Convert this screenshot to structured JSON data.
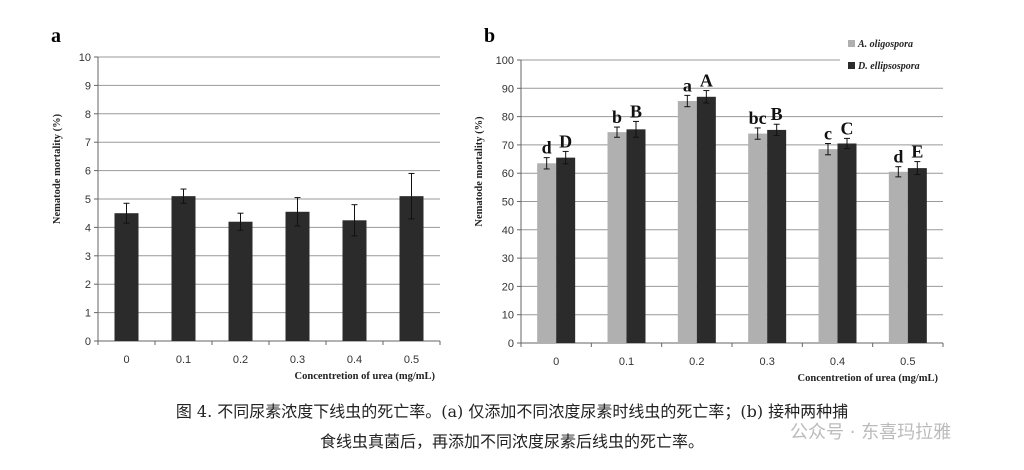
{
  "chart_data": [
    {
      "type": "bar",
      "panel_label": "a",
      "categories": [
        "0",
        "0.1",
        "0.2",
        "0.3",
        "0.4",
        "0.5"
      ],
      "xlabel": "Concentretion of urea (mg/mL)",
      "ylabel": "Nematode mortality (%)",
      "ylim": [
        0,
        10
      ],
      "yticks": [
        0,
        1,
        2,
        3,
        4,
        5,
        6,
        7,
        8,
        9,
        10
      ],
      "grid": true,
      "series": [
        {
          "name": "",
          "color": "#2b2b2b",
          "values": [
            4.5,
            5.1,
            4.2,
            4.55,
            4.25,
            5.1
          ],
          "errors": [
            0.35,
            0.25,
            0.3,
            0.5,
            0.55,
            0.8
          ]
        }
      ]
    },
    {
      "type": "bar",
      "panel_label": "b",
      "categories": [
        "0",
        "0.1",
        "0.2",
        "0.3",
        "0.4",
        "0.5"
      ],
      "xlabel": "Concentretion of urea (mg/mL)",
      "ylabel": "Nematode mortality (%)",
      "ylim": [
        0,
        100
      ],
      "yticks": [
        0,
        10,
        20,
        30,
        40,
        50,
        60,
        70,
        80,
        90,
        100
      ],
      "grid": true,
      "legend_position": "top-right",
      "series": [
        {
          "name": "A. oligospora",
          "color": "#b0b0b0",
          "values": [
            63.5,
            74.5,
            85.5,
            74,
            68.5,
            60.5
          ],
          "errors": [
            2,
            1.8,
            2,
            2,
            2,
            1.8
          ],
          "labels": [
            "d",
            "b",
            "a",
            "bc",
            "c",
            "d"
          ]
        },
        {
          "name": "D. ellipsospora",
          "color": "#2b2b2b",
          "values": [
            65.5,
            75.5,
            87,
            75.3,
            70.5,
            61.8
          ],
          "errors": [
            2.2,
            2.8,
            2.2,
            2,
            1.8,
            2.3
          ],
          "labels": [
            "D",
            "B",
            "A",
            "B",
            "C",
            "E"
          ]
        }
      ]
    }
  ],
  "caption": {
    "line1": "图 4. 不同尿素浓度下线虫的死亡率。(a) 仅添加不同浓度尿素时线虫的死亡率；(b) 接种两种捕",
    "line2": "食线虫真菌后，再添加不同浓度尿素后线虫的死亡率。"
  },
  "watermark": "公众号 · 东喜玛拉雅"
}
